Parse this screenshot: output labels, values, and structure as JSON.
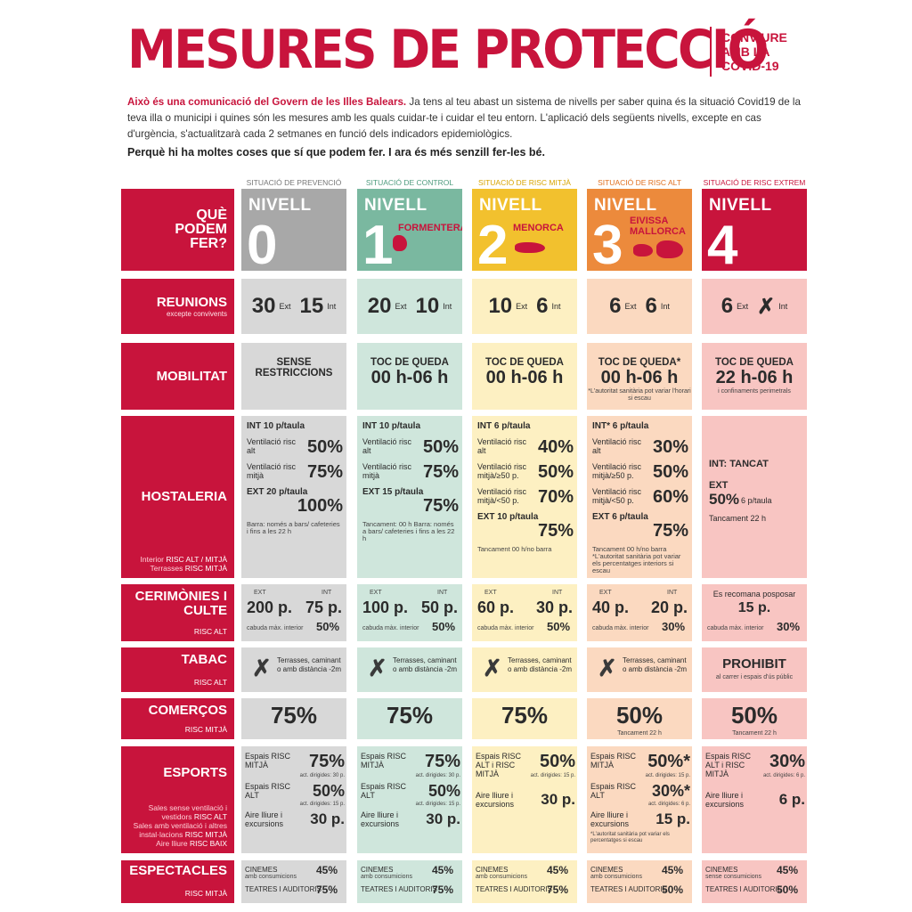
{
  "header": {
    "title": "MESURES DE PROTECCIÓ",
    "side_title_1": "CONVIURE",
    "side_title_2": "AMB LA",
    "side_title_3": "COVID-19",
    "intro_lead": "Això és una comunicació del Govern de les Illes Balears.",
    "intro_rest": "Ja tens al teu abast un sistema de nivells per saber quina és la situació Covid19 de la teva illa o municipi i quines són les mesures amb les quals cuidar-te i cuidar el teu entorn. L'aplicació dels següents nivells, excepte en cas d'urgència, s'actualitzarà cada 2 setmanes en funció dels indicadors epidemiològics.",
    "sub_intro": "Perquè hi ha moltes coses que sí que podem fer. I ara és més senzill fer-les bé."
  },
  "rows": {
    "que": "QUÈ PODEM FER?",
    "reunions": "REUNIONS",
    "reunions_note": "excepte convivents",
    "mobilitat": "MOBILITAT",
    "hostaleria": "HOSTALERIA",
    "hostaleria_risk_1": "Interior",
    "hostaleria_risk_1b": "RISC ALT / MITJÀ",
    "hostaleria_risk_2": "Terrasses",
    "hostaleria_risk_2b": "RISC MITJÀ",
    "cerimonies": "CERIMÒNIES I CULTE",
    "cerimonies_risk": "RISC ALT",
    "tabac": "TABAC",
    "tabac_risk": "RISC ALT",
    "comercos": "COMERÇOS",
    "comercos_risk": "RISC MITJÀ",
    "esports": "ESPORTS",
    "esports_risk_a": "Sales sense ventilació i vestidors",
    "esports_risk_a2": "RISC ALT",
    "esports_risk_b": "Sales amb ventilació i altres instal·lacions",
    "esports_risk_b2": "RISC MITJÀ",
    "esports_risk_c": "Aire lliure",
    "esports_risk_c2": "RISC BAIX",
    "espectacles": "ESPECTACLES",
    "espectacles_risk": "RISC MITJÀ"
  },
  "levels": [
    {
      "caption": "SITUACIÓ DE PREVENCIÓ",
      "word": "NIVELL",
      "num": "0",
      "island": "",
      "color": "#a8a8a8",
      "caption_color": "#777777"
    },
    {
      "caption": "SITUACIÓ DE CONTROL",
      "word": "NIVELL",
      "num": "1",
      "island": "FORMENTERA",
      "color": "#7ab8a0",
      "caption_color": "#4e9b7e"
    },
    {
      "caption": "SITUACIÓ DE RISC MITJÀ",
      "word": "NIVELL",
      "num": "2",
      "island": "MENORCA",
      "color": "#f2c12e",
      "caption_color": "#d8a400"
    },
    {
      "caption": "SITUACIÓ DE RISC ALT",
      "word": "NIVELL",
      "num": "3",
      "island": "EIVISSA MALLORCA",
      "color": "#ec8a3c",
      "caption_color": "#e07020"
    },
    {
      "caption": "SITUACIÓ DE RISC EXTREM",
      "word": "NIVELL",
      "num": "4",
      "island": "",
      "color": "#c8143c",
      "caption_color": "#c8143c"
    }
  ],
  "reunions": [
    {
      "ext": "30",
      "int": "15"
    },
    {
      "ext": "20",
      "int": "10"
    },
    {
      "ext": "10",
      "int": "6"
    },
    {
      "ext": "6",
      "int": "6"
    },
    {
      "ext": "6",
      "int": "✗"
    }
  ],
  "labels": {
    "ext": "Ext",
    "int": "Int",
    "ext_caps": "EXT",
    "int_caps": "INT"
  },
  "mobilitat": [
    {
      "line1": "SENSE",
      "line2": "RESTRICCIONS",
      "hours": "",
      "note": ""
    },
    {
      "line1": "TOC DE QUEDA",
      "line2": "",
      "hours": "00 h-06 h",
      "note": ""
    },
    {
      "line1": "TOC DE QUEDA",
      "line2": "",
      "hours": "00 h-06 h",
      "note": ""
    },
    {
      "line1": "TOC DE QUEDA*",
      "line2": "",
      "hours": "00 h-06 h",
      "note": "*L'autoritat sanitària pot variar l'horari si escau"
    },
    {
      "line1": "TOC DE QUEDA",
      "line2": "",
      "hours": "22 h-06 h",
      "note": "i confinaments perimetrals"
    }
  ],
  "hostaleria": [
    {
      "int": "INT 10 p/taula",
      "r1": "Ventilació risc alt",
      "v1": "50%",
      "r2": "Ventilació risc mitjà",
      "v2": "75%",
      "r3": "",
      "v3": "",
      "ext": "EXT 20 p/taula",
      "vext": "100%",
      "foot": "Barra: només a bars/ cafeteries i fins a les 22 h"
    },
    {
      "int": "INT 10 p/taula",
      "r1": "Ventilació risc alt",
      "v1": "50%",
      "r2": "Ventilació risc mitjà",
      "v2": "75%",
      "r3": "",
      "v3": "",
      "ext": "EXT 15 p/taula",
      "vext": "75%",
      "foot": "Tancament: 00 h Barra: només a bars/ cafeteries i fins a les 22 h"
    },
    {
      "int": "INT 6 p/taula",
      "r1": "Ventilació risc alt",
      "v1": "40%",
      "r2": "Ventilació risc mitjà/≥50 p.",
      "v2": "50%",
      "r3": "Ventilació risc mitjà/<50 p.",
      "v3": "70%",
      "ext": "EXT 10 p/taula",
      "vext": "75%",
      "foot": "Tancament 00 h/no barra"
    },
    {
      "int": "INT* 6 p/taula",
      "r1": "Ventilació risc alt",
      "v1": "30%",
      "r2": "Ventilació risc mitjà/≥50 p.",
      "v2": "50%",
      "r3": "Ventilació risc mitjà/<50 p.",
      "v3": "60%",
      "ext": "EXT 6 p/taula",
      "vext": "75%",
      "foot": "Tancament 00 h/no barra *L'autoritat sanitària pot variar els percentatges interiors si escau"
    },
    {
      "int": "INT: TANCAT",
      "r1": "",
      "v1": "",
      "r2": "",
      "v2": "",
      "r3": "",
      "v3": "",
      "ext": "EXT",
      "vext": "50%",
      "ext_note": "6 p/taula",
      "foot": "Tancament 22 h"
    }
  ],
  "cerimonies": [
    {
      "ext": "200 p.",
      "int": "75 p.",
      "cap": "cabuda màx. interior",
      "pct": "50%",
      "note": ""
    },
    {
      "ext": "100 p.",
      "int": "50 p.",
      "cap": "cabuda màx. interior",
      "pct": "50%",
      "note": ""
    },
    {
      "ext": "60 p.",
      "int": "30 p.",
      "cap": "cabuda màx. interior",
      "pct": "50%",
      "note": ""
    },
    {
      "ext": "40 p.",
      "int": "20 p.",
      "cap": "cabuda màx. interior",
      "pct": "30%",
      "note": ""
    },
    {
      "ext": "",
      "int": "15 p.",
      "cap": "cabuda màx. interior",
      "pct": "30%",
      "note": "Es recomana posposar"
    }
  ],
  "tabac": [
    {
      "mark": "✗",
      "text": "Terrasses, caminant o amb distància -2m"
    },
    {
      "mark": "✗",
      "text": "Terrasses, caminant o amb distància -2m"
    },
    {
      "mark": "✗",
      "text": "Terrasses, caminant o amb distància -2m"
    },
    {
      "mark": "✗",
      "text": "Terrasses, caminant o amb distància -2m"
    },
    {
      "mark": "PROHIBIT",
      "text": "al carrer i espais d'ús públic"
    }
  ],
  "comercos": [
    {
      "value": "75%",
      "note": ""
    },
    {
      "value": "75%",
      "note": ""
    },
    {
      "value": "75%",
      "note": ""
    },
    {
      "value": "50%",
      "note": "Tancament 22 h"
    },
    {
      "value": "50%",
      "note": "Tancament 22 h"
    }
  ],
  "esports": [
    {
      "a": "Espais RISC MITJÀ",
      "av": "75%",
      "an": "act. dirigides: 30 p.",
      "b": "Espais RISC ALT",
      "bv": "50%",
      "bn": "act. dirigides: 15 p.",
      "c": "Aire lliure i excursions",
      "cv": "30 p.",
      "foot": ""
    },
    {
      "a": "Espais RISC MITJÀ",
      "av": "75%",
      "an": "act. dirigides: 30 p.",
      "b": "Espais RISC ALT",
      "bv": "50%",
      "bn": "act. dirigides: 15 p.",
      "c": "Aire lliure i excursions",
      "cv": "30 p.",
      "foot": ""
    },
    {
      "a": "Espais RISC ALT i RISC MITJÀ",
      "av": "50%",
      "an": "act. dirigides: 15 p.",
      "b": "",
      "bv": "",
      "bn": "",
      "c": "Aire lliure i excursions",
      "cv": "30 p.",
      "foot": ""
    },
    {
      "a": "Espais RISC MITJÀ",
      "av": "50%*",
      "an": "act. dirigides: 15 p.",
      "b": "Espais RISC ALT",
      "bv": "30%*",
      "bn": "act. dirigides: 6 p.",
      "c": "Aire lliure i excursions",
      "cv": "15 p.",
      "foot": "*L'autoritat sanitària pot variar els percentatges si escau"
    },
    {
      "a": "Espais RISC ALT i RISC MITJÀ",
      "av": "30%",
      "an": "act. dirigides: 6 p.",
      "b": "",
      "bv": "",
      "bn": "",
      "c": "Aire lliure i excursions",
      "cv": "6 p.",
      "foot": ""
    }
  ],
  "espectacles": [
    {
      "c1": "CINEMES",
      "c1n": "amb consumicions",
      "v1": "45%",
      "c2": "TEATRES I AUDITORIS",
      "v2": "75%"
    },
    {
      "c1": "CINEMES",
      "c1n": "amb consumicions",
      "v1": "45%",
      "c2": "TEATRES I AUDITORIS",
      "v2": "75%"
    },
    {
      "c1": "CINEMES",
      "c1n": "amb consumicions",
      "v1": "45%",
      "c2": "TEATRES I AUDITORIS",
      "v2": "75%"
    },
    {
      "c1": "CINEMES",
      "c1n": "amb consumicions",
      "v1": "45%",
      "c2": "TEATRES I AUDITORIS",
      "v2": "50%"
    },
    {
      "c1": "CINEMES",
      "c1n": "sense consumicions",
      "v1": "45%",
      "c2": "TEATRES I AUDITORIS",
      "v2": "50%"
    }
  ]
}
